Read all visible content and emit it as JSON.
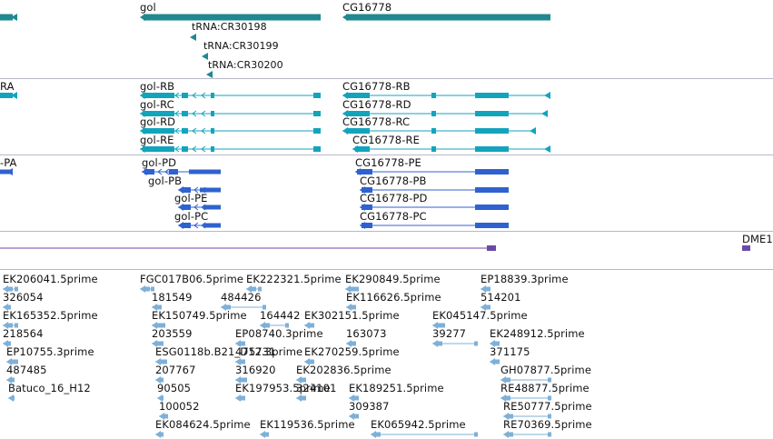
{
  "colors": {
    "gene": "#208890",
    "transcript": "#12a4bd",
    "protein": "#2f62d0",
    "line_track": "#6a4aa6",
    "est": "#7eb0d8",
    "separator": "#b8b8c8"
  },
  "tracks": {
    "genes": {
      "features": [
        {
          "id": "gol",
          "label": "gol"
        },
        {
          "id": "cg16778",
          "label": "CG16778"
        },
        {
          "id": "trna1",
          "label": "tRNA:CR30198"
        },
        {
          "id": "trna2",
          "label": "tRNA:CR30199"
        },
        {
          "id": "trna3",
          "label": "tRNA:CR30200"
        }
      ]
    },
    "transcripts": {
      "left_clipped_label": "RA",
      "features": [
        {
          "id": "gol-rb",
          "label": "gol-RB"
        },
        {
          "id": "gol-rc",
          "label": "gol-RC"
        },
        {
          "id": "gol-rd",
          "label": "gol-RD"
        },
        {
          "id": "gol-re",
          "label": "gol-RE"
        },
        {
          "id": "cg-rb",
          "label": "CG16778-RB"
        },
        {
          "id": "cg-rd",
          "label": "CG16778-RD"
        },
        {
          "id": "cg-rc",
          "label": "CG16778-RC"
        },
        {
          "id": "cg-re",
          "label": "CG16778-RE"
        }
      ]
    },
    "proteins": {
      "left_clipped_label": "-PA",
      "features": [
        {
          "id": "gol-pd",
          "label": "gol-PD"
        },
        {
          "id": "gol-pb",
          "label": "gol-PB"
        },
        {
          "id": "gol-pe",
          "label": "gol-PE"
        },
        {
          "id": "gol-pc",
          "label": "gol-PC"
        },
        {
          "id": "cg-pe",
          "label": "CG16778-PE"
        },
        {
          "id": "cg-pb",
          "label": "CG16778-PB"
        },
        {
          "id": "cg-pd",
          "label": "CG16778-PD"
        },
        {
          "id": "cg-pc",
          "label": "CG16778-PC"
        }
      ]
    },
    "other": {
      "features": [
        {
          "id": "dme1",
          "label": "DME1"
        }
      ]
    },
    "ests": {
      "features": [
        {
          "label": "EK206041.5prime"
        },
        {
          "label": "326054"
        },
        {
          "label": "EK165352.5prime"
        },
        {
          "label": "218564"
        },
        {
          "label": "EP10755.3prime"
        },
        {
          "label": "487485"
        },
        {
          "label": "Batuco_16_H12"
        },
        {
          "label": "FGC017B06.5prime"
        },
        {
          "label": "181549"
        },
        {
          "label": "EK150749.5prime"
        },
        {
          "label": "203559"
        },
        {
          "label": "ESG0118b.B21_D12.3prime"
        },
        {
          "label": "207767"
        },
        {
          "label": "90505"
        },
        {
          "label": "100052"
        },
        {
          "label": "EK084624.5prime"
        },
        {
          "label": "EK222321.5prime"
        },
        {
          "label": "484426"
        },
        {
          "label": "164442"
        },
        {
          "label": "EP08740.3prime"
        },
        {
          "label": "475731"
        },
        {
          "label": "316920"
        },
        {
          "label": "EK197953.5prime"
        },
        {
          "label": "EK119536.5prime"
        },
        {
          "label": "EK302151.5prime"
        },
        {
          "label": "EK270259.5prime"
        },
        {
          "label": "EK202836.5prime"
        },
        {
          "label": "324101"
        },
        {
          "label": "EK290849.5prime"
        },
        {
          "label": "EK116626.5prime"
        },
        {
          "label": "163073"
        },
        {
          "label": "EK189251.5prime"
        },
        {
          "label": "309387"
        },
        {
          "label": "EK065942.5prime"
        },
        {
          "label": "EK045147.5prime"
        },
        {
          "label": "39277"
        },
        {
          "label": "EP18839.3prime"
        },
        {
          "label": "514201"
        },
        {
          "label": "EK248912.5prime"
        },
        {
          "label": "371175"
        },
        {
          "label": "GH07877.5prime"
        },
        {
          "label": "RE48877.5prime"
        },
        {
          "label": "RE50777.5prime"
        },
        {
          "label": "RE70369.5prime"
        }
      ]
    }
  }
}
